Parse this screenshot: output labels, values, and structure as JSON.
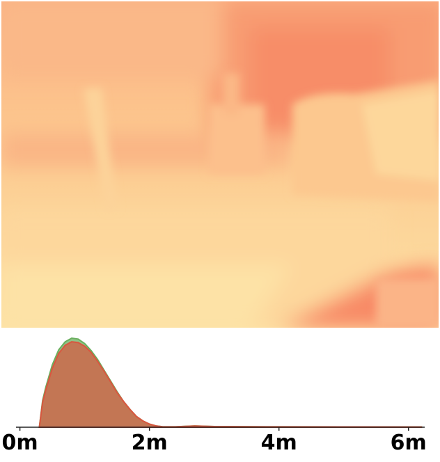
{
  "chart_data": [
    {
      "type": "heatmap",
      "description_colors": {
        "near": "#fde3a6",
        "mid": "#fcc48e",
        "far": "#f8906a"
      },
      "colormap": [
        "#fde7ab",
        "#fdd39b",
        "#fcbb86",
        "#f9a577",
        "#f68d69"
      ]
    },
    {
      "type": "area",
      "x_unit": "m",
      "xlim": [
        -0.2,
        6.25
      ],
      "x_ticks": [
        0,
        2,
        4,
        6
      ],
      "x_tick_labels": [
        "0m",
        "2m",
        "4m",
        "6m"
      ],
      "grid": false,
      "series": [
        {
          "color": "#6aaf5e",
          "x": [
            0.3,
            0.35,
            0.4,
            0.5,
            0.6,
            0.7,
            0.8,
            0.9,
            1.0,
            1.1,
            1.2,
            1.3,
            1.4,
            1.5,
            1.6,
            1.7,
            1.8,
            1.9,
            2.0,
            2.1,
            2.2,
            2.4,
            2.7,
            3.0,
            4.0,
            5.0,
            6.2
          ],
          "y": [
            0.0,
            0.3,
            0.45,
            0.7,
            0.87,
            0.96,
            1.0,
            0.99,
            0.94,
            0.86,
            0.76,
            0.64,
            0.52,
            0.4,
            0.29,
            0.2,
            0.12,
            0.07,
            0.035,
            0.015,
            0.006,
            0.005,
            0.015,
            0.008,
            0.005,
            0.004,
            0.003
          ]
        },
        {
          "color": "#d9563f",
          "x": [
            0.3,
            0.35,
            0.4,
            0.5,
            0.6,
            0.7,
            0.8,
            0.9,
            1.0,
            1.1,
            1.2,
            1.3,
            1.4,
            1.5,
            1.6,
            1.7,
            1.8,
            1.9,
            2.0,
            2.1,
            2.2,
            2.4,
            2.7,
            3.0,
            4.0,
            5.0,
            6.2
          ],
          "y": [
            0.0,
            0.28,
            0.42,
            0.66,
            0.83,
            0.92,
            0.96,
            0.95,
            0.91,
            0.84,
            0.74,
            0.63,
            0.51,
            0.39,
            0.29,
            0.2,
            0.12,
            0.07,
            0.035,
            0.015,
            0.006,
            0.005,
            0.014,
            0.008,
            0.005,
            0.004,
            0.003
          ]
        }
      ]
    }
  ]
}
